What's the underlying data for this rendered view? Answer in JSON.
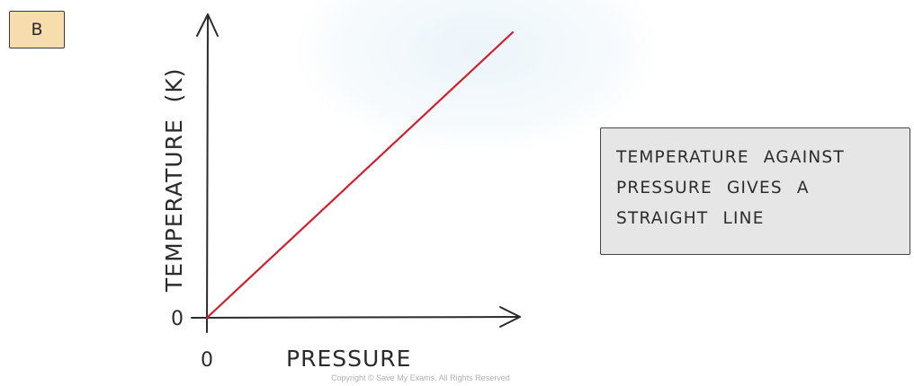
{
  "panel_label": "B",
  "callout": {
    "lines": [
      "TEMPERATURE  AGAINST",
      "PRESSURE  GIVES  A",
      "STRAIGHT  LINE"
    ]
  },
  "copyright": "Copyright © Save My Exams. All Rights Reserved",
  "colors": {
    "line": "#d0202e",
    "axis": "#2b2b2b",
    "label_bg": "#f7dcae",
    "callout_bg": "#e6e6e6"
  },
  "chart_data": {
    "type": "line",
    "title": "",
    "xlabel": "PRESSURE",
    "ylabel": "TEMPERATURE  (K)",
    "x_tick_labels": [
      "0"
    ],
    "y_tick_labels": [
      "0"
    ],
    "grid": false,
    "series": [
      {
        "x": [
          0,
          1
        ],
        "y": [
          0,
          1
        ]
      }
    ]
  }
}
